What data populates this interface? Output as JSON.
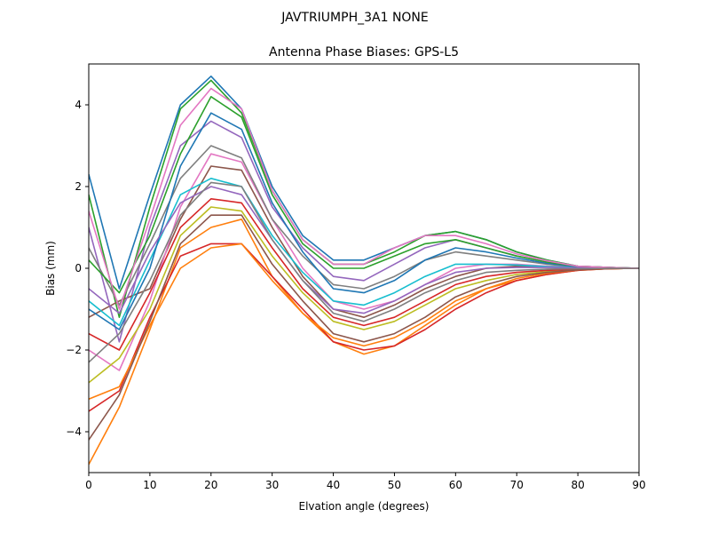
{
  "figure": {
    "suptitle": "JAVTRIUMPH_3A1  NONE"
  },
  "chart_data": {
    "type": "line",
    "title": "Antenna Phase Biases: GPS-L5",
    "xlabel": "Elvation angle (degrees)",
    "ylabel": "Bias (mm)",
    "xlim": [
      0,
      90
    ],
    "ylim": [
      -5,
      5
    ],
    "xticks": [
      0,
      10,
      20,
      30,
      40,
      50,
      60,
      70,
      80,
      90
    ],
    "yticks": [
      -4,
      -2,
      0,
      2,
      4
    ],
    "grid": false,
    "legend": "none",
    "x": [
      0,
      5,
      10,
      15,
      20,
      25,
      30,
      35,
      40,
      45,
      50,
      55,
      60,
      65,
      70,
      75,
      80,
      85,
      90
    ],
    "colors": [
      "#1f77b4",
      "#ff7f0e",
      "#2ca02c",
      "#d62728",
      "#9467bd",
      "#8c564b",
      "#e377c2",
      "#7f7f7f",
      "#bcbd22",
      "#17becf"
    ],
    "series": [
      {
        "values": [
          2.3,
          -0.5,
          1.8,
          4.0,
          4.7,
          3.9,
          2.0,
          0.8,
          0.2,
          0.2,
          0.5,
          0.8,
          0.9,
          0.7,
          0.4,
          0.2,
          0.05,
          0.02,
          0.0
        ]
      },
      {
        "values": [
          -4.8,
          -3.4,
          -1.5,
          0.5,
          1.0,
          1.2,
          -0.2,
          -1.1,
          -1.8,
          -2.1,
          -1.9,
          -1.4,
          -0.9,
          -0.5,
          -0.3,
          -0.15,
          -0.05,
          -0.01,
          0.0
        ]
      },
      {
        "values": [
          1.8,
          -1.2,
          1.5,
          3.9,
          4.6,
          3.8,
          1.9,
          0.7,
          0.1,
          0.1,
          0.4,
          0.8,
          0.9,
          0.7,
          0.4,
          0.2,
          0.05,
          0.02,
          0.0
        ]
      },
      {
        "values": [
          -3.5,
          -3.0,
          -1.2,
          0.3,
          0.6,
          0.6,
          -0.2,
          -1.0,
          -1.8,
          -2.0,
          -1.9,
          -1.5,
          -1.0,
          -0.6,
          -0.3,
          -0.15,
          -0.05,
          -0.01,
          0.0
        ]
      },
      {
        "values": [
          1.0,
          -1.8,
          1.0,
          3.0,
          3.6,
          3.2,
          1.5,
          0.5,
          -0.2,
          -0.3,
          0.1,
          0.5,
          0.7,
          0.5,
          0.3,
          0.15,
          0.05,
          0.02,
          0.0
        ]
      },
      {
        "values": [
          -1.2,
          -0.8,
          -0.5,
          1.2,
          2.5,
          2.4,
          1.0,
          -0.2,
          -1.0,
          -1.2,
          -0.9,
          -0.5,
          -0.2,
          0.0,
          0.05,
          0.05,
          0.02,
          0.01,
          0.0
        ]
      },
      {
        "values": [
          -2.0,
          -2.5,
          -0.8,
          1.5,
          2.8,
          2.6,
          1.2,
          0.0,
          -0.8,
          -1.0,
          -0.8,
          -0.4,
          0.0,
          0.1,
          0.1,
          0.05,
          0.02,
          0.01,
          0.0
        ]
      },
      {
        "values": [
          0.5,
          -0.9,
          0.6,
          2.2,
          3.0,
          2.7,
          1.2,
          0.3,
          -0.4,
          -0.5,
          -0.2,
          0.2,
          0.4,
          0.3,
          0.2,
          0.1,
          0.03,
          0.01,
          0.0
        ]
      },
      {
        "values": [
          -2.8,
          -2.2,
          -1.0,
          0.8,
          1.5,
          1.4,
          0.3,
          -0.6,
          -1.3,
          -1.5,
          -1.3,
          -0.9,
          -0.5,
          -0.3,
          -0.15,
          -0.08,
          -0.03,
          -0.01,
          0.0
        ]
      },
      {
        "values": [
          -0.8,
          -1.4,
          0.2,
          1.8,
          2.2,
          2.0,
          0.8,
          -0.1,
          -0.8,
          -0.9,
          -0.6,
          -0.2,
          0.1,
          0.1,
          0.08,
          0.04,
          0.02,
          0.01,
          0.0
        ]
      },
      {
        "values": [
          -1.0,
          -1.5,
          0.0,
          2.5,
          3.8,
          3.4,
          1.6,
          0.4,
          -0.5,
          -0.6,
          -0.3,
          0.2,
          0.5,
          0.4,
          0.25,
          0.12,
          0.04,
          0.01,
          0.0
        ]
      },
      {
        "values": [
          -3.2,
          -2.9,
          -1.4,
          0.0,
          0.5,
          0.6,
          -0.3,
          -1.1,
          -1.7,
          -1.9,
          -1.7,
          -1.3,
          -0.8,
          -0.5,
          -0.25,
          -0.12,
          -0.04,
          -0.01,
          0.0
        ]
      },
      {
        "values": [
          0.2,
          -0.6,
          0.8,
          2.8,
          4.2,
          3.7,
          1.8,
          0.6,
          0.0,
          0.0,
          0.3,
          0.6,
          0.7,
          0.5,
          0.3,
          0.15,
          0.05,
          0.02,
          0.0
        ]
      },
      {
        "values": [
          -1.6,
          -2.0,
          -0.6,
          1.0,
          1.7,
          1.6,
          0.5,
          -0.5,
          -1.2,
          -1.4,
          -1.2,
          -0.8,
          -0.4,
          -0.2,
          -0.1,
          -0.05,
          -0.02,
          -0.01,
          0.0
        ]
      },
      {
        "values": [
          -0.5,
          -1.1,
          0.4,
          1.6,
          2.0,
          1.8,
          0.7,
          -0.3,
          -1.0,
          -1.1,
          -0.8,
          -0.4,
          -0.1,
          0.0,
          0.02,
          0.02,
          0.01,
          0.0,
          0.0
        ]
      },
      {
        "values": [
          -4.2,
          -3.1,
          -1.3,
          0.6,
          1.3,
          1.3,
          0.1,
          -0.8,
          -1.6,
          -1.8,
          -1.6,
          -1.2,
          -0.7,
          -0.4,
          -0.2,
          -0.1,
          -0.04,
          -0.01,
          0.0
        ]
      },
      {
        "values": [
          1.4,
          -1.0,
          1.2,
          3.5,
          4.4,
          3.9,
          1.9,
          0.7,
          0.1,
          0.1,
          0.5,
          0.8,
          0.8,
          0.6,
          0.35,
          0.18,
          0.05,
          0.02,
          0.0
        ]
      },
      {
        "values": [
          -2.3,
          -1.6,
          -0.3,
          1.3,
          2.1,
          2.0,
          0.7,
          -0.3,
          -1.1,
          -1.3,
          -1.0,
          -0.6,
          -0.3,
          -0.1,
          -0.05,
          -0.02,
          -0.01,
          0.0,
          0.0
        ]
      }
    ]
  }
}
